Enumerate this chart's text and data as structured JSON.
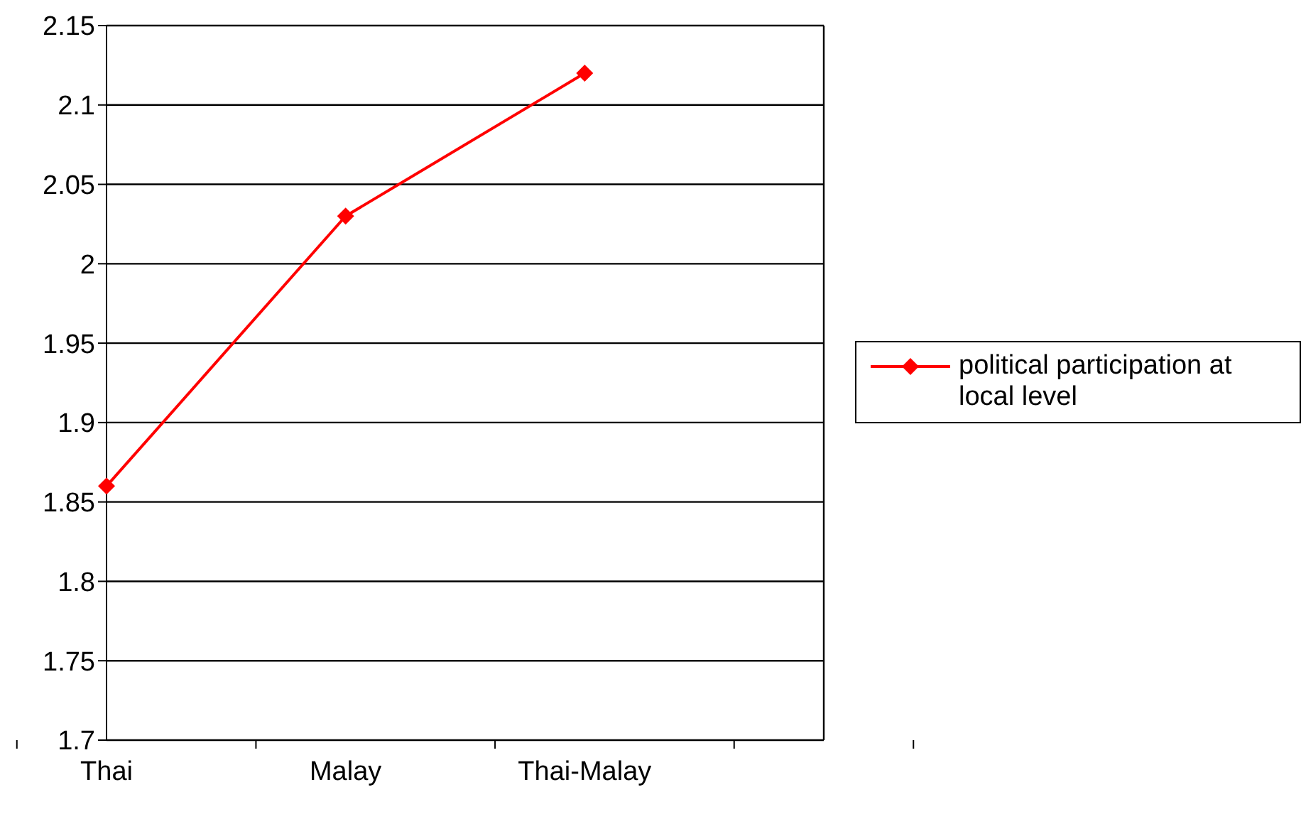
{
  "chart_data": {
    "type": "line",
    "categories": [
      "Thai",
      "Malay",
      "Thai-Malay",
      null
    ],
    "series": [
      {
        "name": "political participation at local level",
        "color": "#ff0000",
        "values": [
          1.86,
          2.03,
          2.12,
          null
        ]
      }
    ],
    "ylim": [
      1.7,
      2.15
    ],
    "yticks": [
      1.7,
      1.75,
      1.8,
      1.85,
      1.9,
      1.95,
      2,
      2.05,
      2.1,
      2.15
    ],
    "grid": "y",
    "legend": "right",
    "marker": "diamond",
    "line_style": "solid"
  }
}
